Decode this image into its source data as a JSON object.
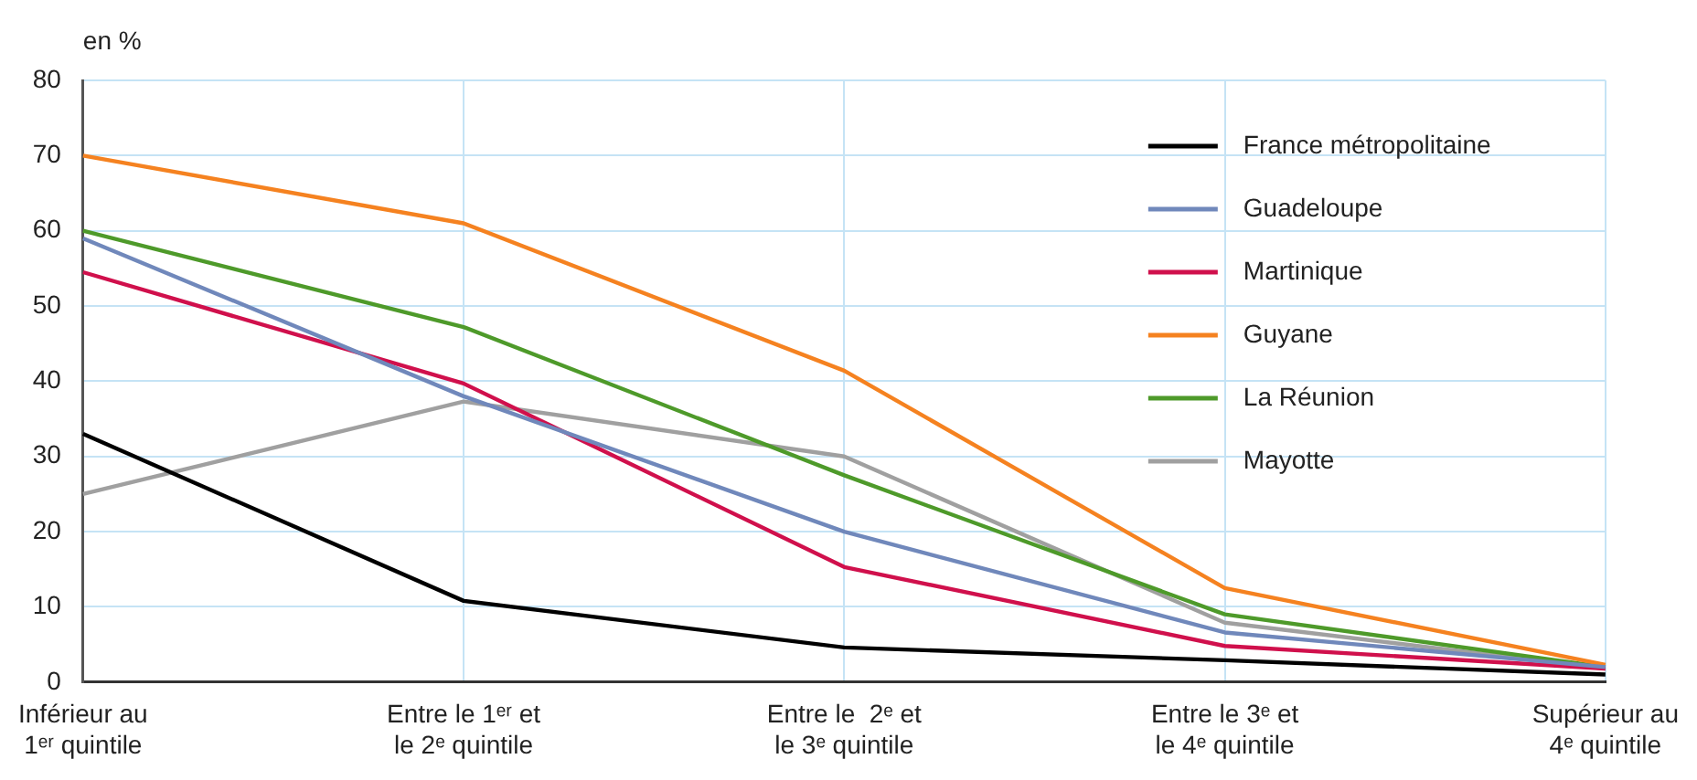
{
  "chart_data": {
    "type": "line",
    "ylabel": "en %",
    "categories": [
      "Inférieur au\n1ᵉʳ quintile",
      "Entre le 1ᵉʳ et\nle 2ᵉ quintile",
      "Entre le  2ᵉ et\nle 3ᵉ quintile",
      "Entre le 3ᵉ et\nle 4ᵉ quintile",
      "Supérieur au\n4ᵉ quintile"
    ],
    "series": [
      {
        "name": "France métropolitaine",
        "color": "#000000",
        "values": [
          33,
          10.8,
          4.6,
          2.9,
          1
        ]
      },
      {
        "name": "Guadeloupe",
        "color": "#7088bb",
        "values": [
          59,
          38,
          20,
          6.6,
          2
        ]
      },
      {
        "name": "Martinique",
        "color": "#d0104c",
        "values": [
          54.5,
          39.7,
          15.3,
          4.8,
          1.8
        ]
      },
      {
        "name": "Guyane",
        "color": "#f58220",
        "values": [
          70,
          61,
          41.4,
          12.5,
          2.3
        ]
      },
      {
        "name": "La Réunion",
        "color": "#4e9a2a",
        "values": [
          60,
          47.2,
          27.5,
          9,
          2
        ]
      },
      {
        "name": "Mayotte",
        "color": "#a0a0a0",
        "values": [
          25,
          37.3,
          30,
          7.9,
          1.8
        ]
      }
    ],
    "ylim": [
      0,
      80
    ],
    "yticks": [
      0,
      10,
      20,
      30,
      40,
      50,
      60,
      70,
      80
    ],
    "grid": true,
    "legend": "top right",
    "marker": "none",
    "line_style": "solid"
  }
}
